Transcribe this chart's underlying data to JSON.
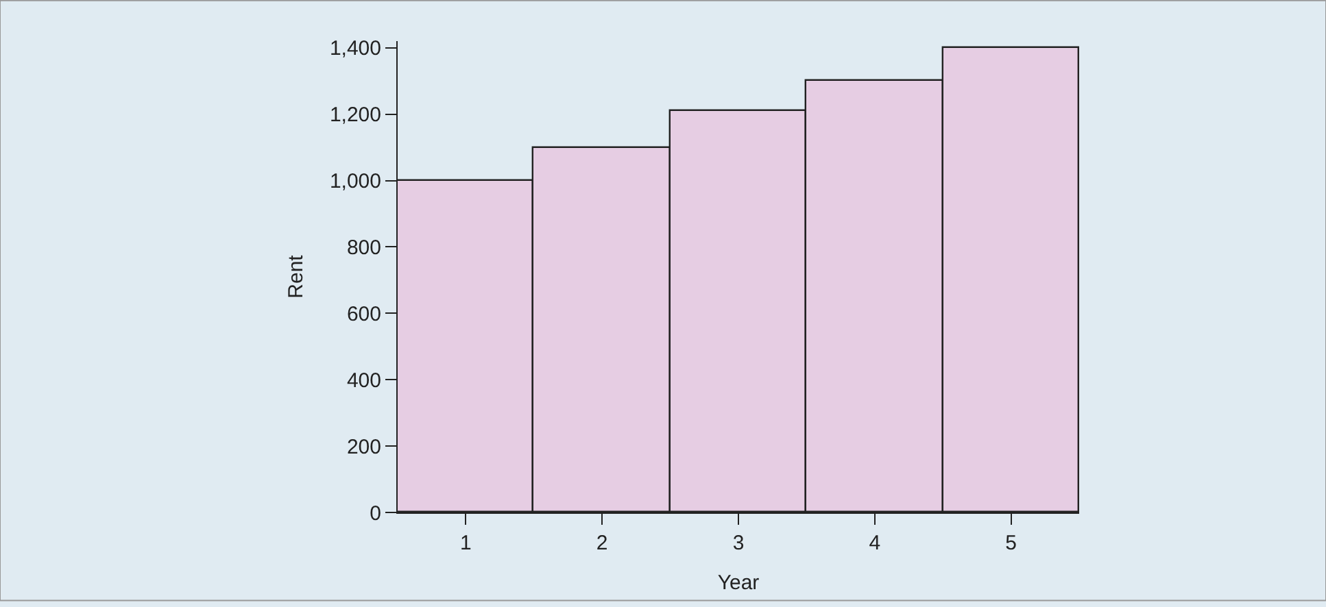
{
  "chart_data": {
    "type": "bar",
    "xlabel": "Year",
    "ylabel": "Rent",
    "categories": [
      "1",
      "2",
      "3",
      "4",
      "5"
    ],
    "values": [
      1000,
      1100,
      1210,
      1300,
      1400
    ],
    "color": "#e6cde3",
    "ylim": [
      0,
      1420
    ],
    "yticks": [
      {
        "value": 0,
        "label": "0"
      },
      {
        "value": 200,
        "label": "200"
      },
      {
        "value": 400,
        "label": "400"
      },
      {
        "value": 600,
        "label": "600"
      },
      {
        "value": 800,
        "label": "800"
      },
      {
        "value": 1000,
        "label": "1,000"
      },
      {
        "value": 1200,
        "label": "1,200"
      },
      {
        "value": 1400,
        "label": "1,400"
      }
    ],
    "grid": false,
    "legend": false
  }
}
